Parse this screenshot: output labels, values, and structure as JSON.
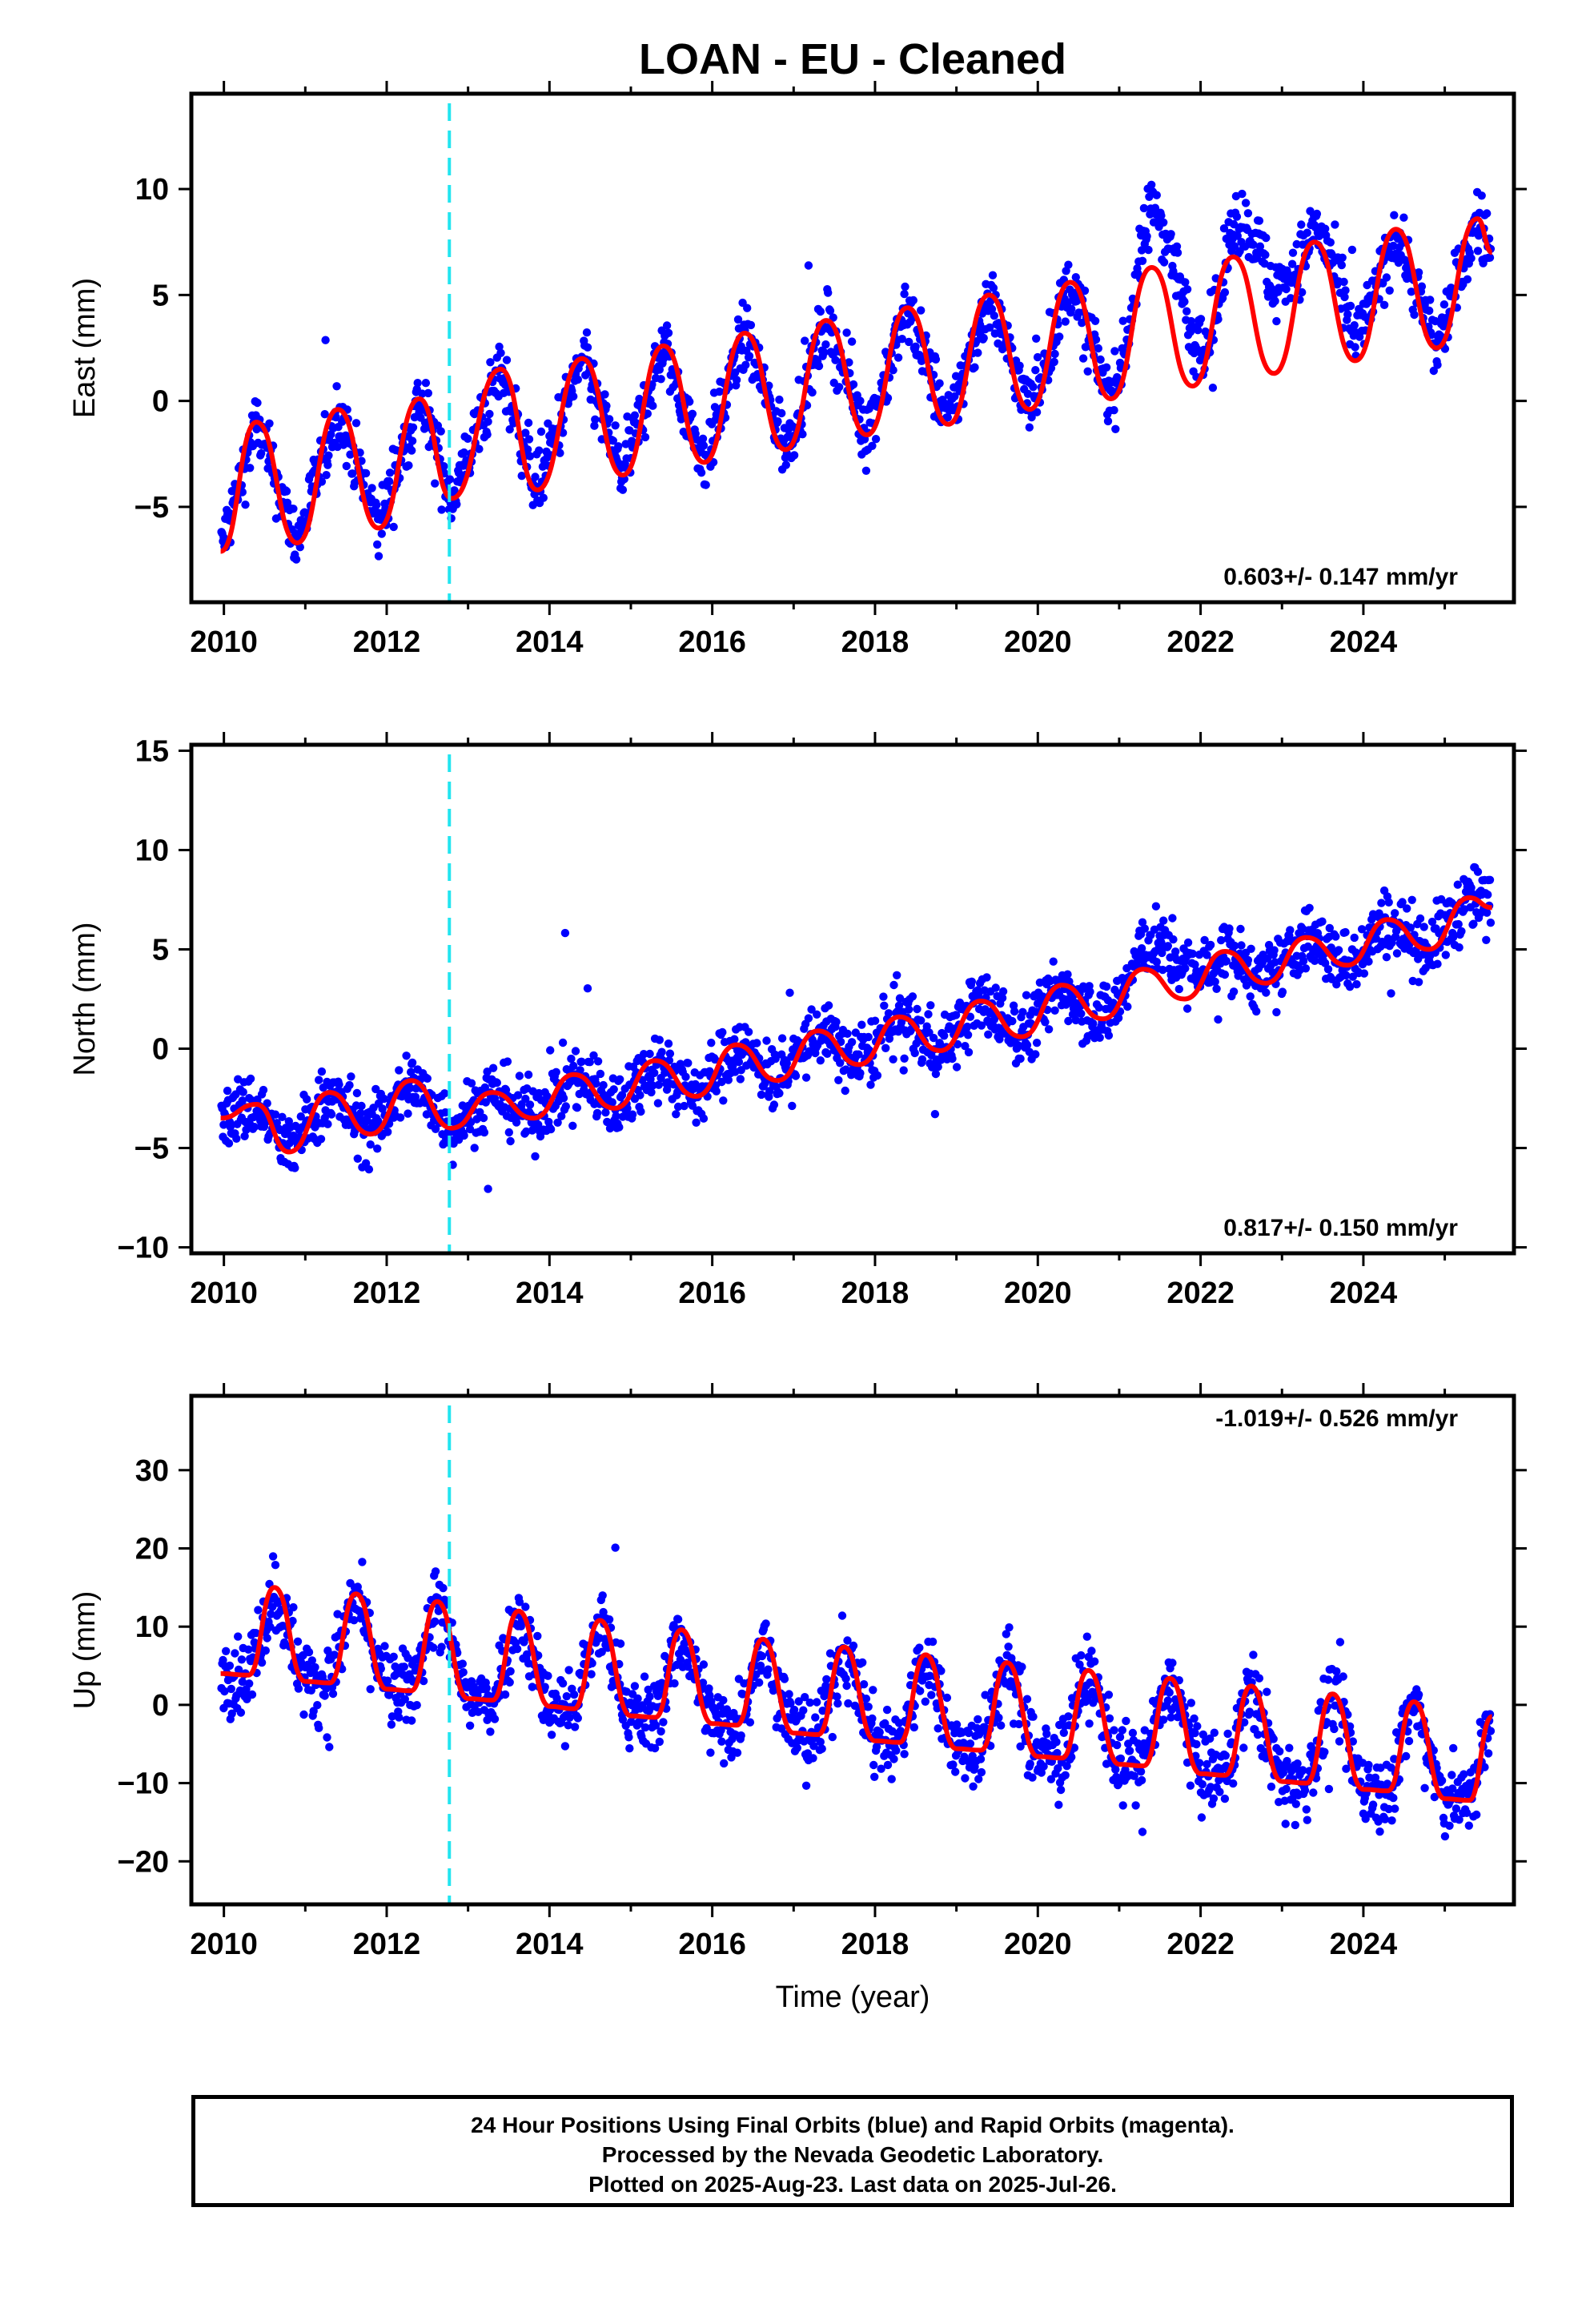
{
  "title": "LOAN  - EU - Cleaned",
  "xlabel": "Time (year)",
  "colors": {
    "data": "#0000ff",
    "model": "#ff0000",
    "marker": "#22e5f0",
    "frame": "#000000"
  },
  "footer": {
    "line1": "24 Hour Positions Using Final Orbits (blue) and Rapid Orbits (magenta).",
    "line2": "Processed by the Nevada Geodetic Laboratory.",
    "line3": "Plotted on 2025-Aug-23. Last data on 2025-Jul-26."
  },
  "chart_data": [
    {
      "type": "scatter",
      "component": "east",
      "ylabel": "East (mm)",
      "xlim": [
        2009.6,
        2025.85
      ],
      "ylim": [
        -9.5,
        14.5
      ],
      "xticks": [
        2010,
        2012,
        2014,
        2016,
        2018,
        2020,
        2022,
        2024
      ],
      "yticks": [
        -5,
        0,
        5,
        10
      ],
      "rate_label": "0.603+/- 0.147 mm/yr",
      "rate_pos": "bottom-right",
      "marker_year": 2012.77,
      "model": {
        "name": "",
        "x": [
          2009.96,
          2010.4,
          2010.9,
          2011.4,
          2011.9,
          2012.4,
          2012.8,
          2013.4,
          2013.85,
          2014.4,
          2014.9,
          2015.4,
          2015.9,
          2016.4,
          2016.9,
          2017.4,
          2017.9,
          2018.4,
          2018.9,
          2019.4,
          2019.9,
          2020.4,
          2020.9,
          2021.4,
          2021.9,
          2022.4,
          2022.9,
          2023.4,
          2023.9,
          2024.4,
          2024.9,
          2025.4,
          2025.58
        ],
        "y": [
          -7.1,
          -1.0,
          -6.7,
          -0.4,
          -6.0,
          0.1,
          -4.6,
          1.5,
          -4.2,
          2.0,
          -3.5,
          2.6,
          -2.9,
          3.2,
          -2.3,
          3.8,
          -1.6,
          4.4,
          -1.1,
          5.0,
          -0.4,
          5.6,
          0.1,
          6.3,
          0.7,
          6.8,
          1.3,
          7.5,
          1.9,
          8.1,
          2.5,
          8.6,
          7.0
        ]
      },
      "data": {
        "name": "",
        "rate": 0.603,
        "amp": 3.6,
        "noise": 1.1,
        "offsets": [
          [
            2021.05,
            3.5
          ],
          [
            2022.25,
            4.0
          ],
          [
            2023.1,
            1.3
          ]
        ]
      }
    },
    {
      "type": "scatter",
      "component": "north",
      "ylabel": "North (mm)",
      "xlim": [
        2009.6,
        2025.85
      ],
      "ylim": [
        -10.3,
        15.3
      ],
      "xticks": [
        2010,
        2012,
        2014,
        2016,
        2018,
        2020,
        2022,
        2024
      ],
      "yticks": [
        -10,
        -5,
        0,
        5,
        10,
        15
      ],
      "rate_label": "0.817+/- 0.150 mm/yr",
      "rate_pos": "bottom-right",
      "marker_year": 2012.77,
      "model": {
        "name": "",
        "x": [
          2009.96,
          2010.4,
          2010.8,
          2011.3,
          2011.8,
          2012.3,
          2012.8,
          2013.3,
          2013.8,
          2014.3,
          2014.8,
          2015.3,
          2015.8,
          2016.3,
          2016.8,
          2017.3,
          2017.8,
          2018.3,
          2018.8,
          2019.3,
          2019.8,
          2020.3,
          2020.8,
          2021.3,
          2021.8,
          2022.3,
          2022.8,
          2023.3,
          2023.8,
          2024.3,
          2024.8,
          2025.3,
          2025.58
        ],
        "y": [
          -3.5,
          -2.8,
          -5.2,
          -2.2,
          -4.3,
          -1.6,
          -4.0,
          -2.2,
          -3.5,
          -1.3,
          -3.0,
          -0.6,
          -2.4,
          0.2,
          -1.6,
          0.9,
          -0.8,
          1.6,
          -0.1,
          2.4,
          0.6,
          3.2,
          1.5,
          4.0,
          2.5,
          4.9,
          3.3,
          5.6,
          4.2,
          6.5,
          5.0,
          7.6,
          7.1
        ]
      },
      "data": {
        "name": "",
        "rate": 0.817,
        "amp": 1.1,
        "noise": 1.2,
        "offsets": [
          [
            2021.05,
            1.8
          ]
        ]
      }
    },
    {
      "type": "scatter",
      "component": "up",
      "ylabel": "Up (mm)",
      "xlim": [
        2009.6,
        2025.85
      ],
      "ylim": [
        -25.5,
        39.5
      ],
      "xticks": [
        2010,
        2012,
        2014,
        2016,
        2018,
        2020,
        2022,
        2024
      ],
      "yticks": [
        -20,
        -10,
        0,
        10,
        20,
        30
      ],
      "rate_label": "-1.019+/- 0.526 mm/yr",
      "rate_pos": "top-right",
      "marker_year": 2012.77,
      "model": {
        "name": "",
        "x": [
          2009.96,
          2010.3,
          2010.62,
          2011.0,
          2011.3,
          2011.62,
          2012.0,
          2012.3,
          2012.62,
          2013.0,
          2013.3,
          2013.62,
          2014.0,
          2014.3,
          2014.62,
          2015.0,
          2015.3,
          2015.62,
          2016.0,
          2016.3,
          2016.62,
          2017.0,
          2017.3,
          2017.62,
          2018.0,
          2018.3,
          2018.62,
          2019.0,
          2019.3,
          2019.62,
          2020.0,
          2020.3,
          2020.62,
          2021.0,
          2021.3,
          2021.62,
          2022.0,
          2022.3,
          2022.62,
          2023.0,
          2023.3,
          2023.62,
          2024.0,
          2024.3,
          2024.62,
          2025.0,
          2025.3,
          2025.58
        ],
        "y": [
          4.0,
          3.8,
          15.0,
          3.0,
          2.8,
          14.2,
          2.0,
          1.8,
          13.2,
          0.8,
          0.6,
          12.0,
          -0.2,
          -0.5,
          10.8,
          -1.4,
          -1.6,
          9.6,
          -2.4,
          -2.6,
          8.4,
          -3.6,
          -3.8,
          7.4,
          -4.6,
          -4.8,
          6.4,
          -5.6,
          -5.8,
          5.4,
          -6.6,
          -6.8,
          4.4,
          -7.6,
          -7.8,
          3.4,
          -8.8,
          -9.0,
          2.4,
          -9.8,
          -10.0,
          1.4,
          -10.8,
          -11.0,
          0.4,
          -12.0,
          -12.2,
          -1.5
        ]
      },
      "data": {
        "name": "",
        "rate": -1.019,
        "amp": 8.5,
        "noise": 3.5,
        "offsets": []
      }
    }
  ]
}
